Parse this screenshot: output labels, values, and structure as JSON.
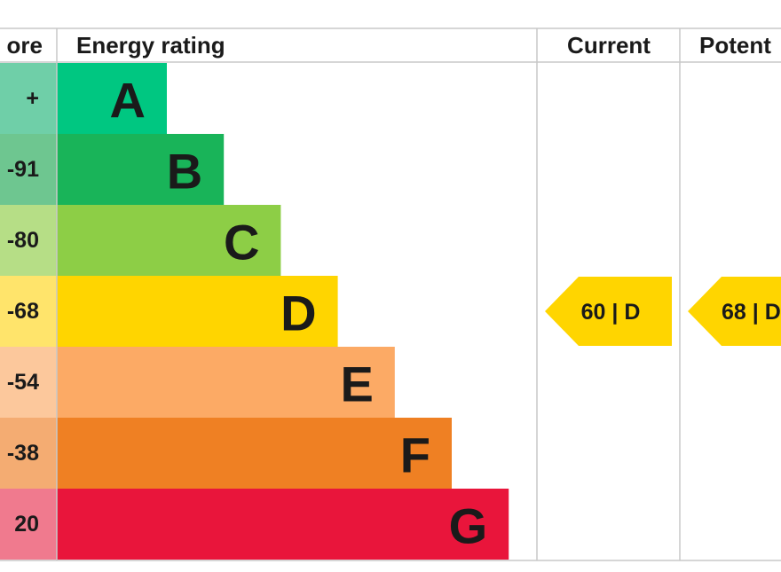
{
  "header": {
    "score": "ore",
    "rating": "Energy rating",
    "current": "Current",
    "potential": "Potent"
  },
  "bands": [
    {
      "range": "+",
      "letter": "A"
    },
    {
      "range": "-91",
      "letter": "B"
    },
    {
      "range": "-80",
      "letter": "C"
    },
    {
      "range": "-68",
      "letter": "D"
    },
    {
      "range": "-54",
      "letter": "E"
    },
    {
      "range": "-38",
      "letter": "F"
    },
    {
      "range": "20",
      "letter": "G"
    }
  ],
  "current": "60 | D",
  "potential": "68 | D"
}
